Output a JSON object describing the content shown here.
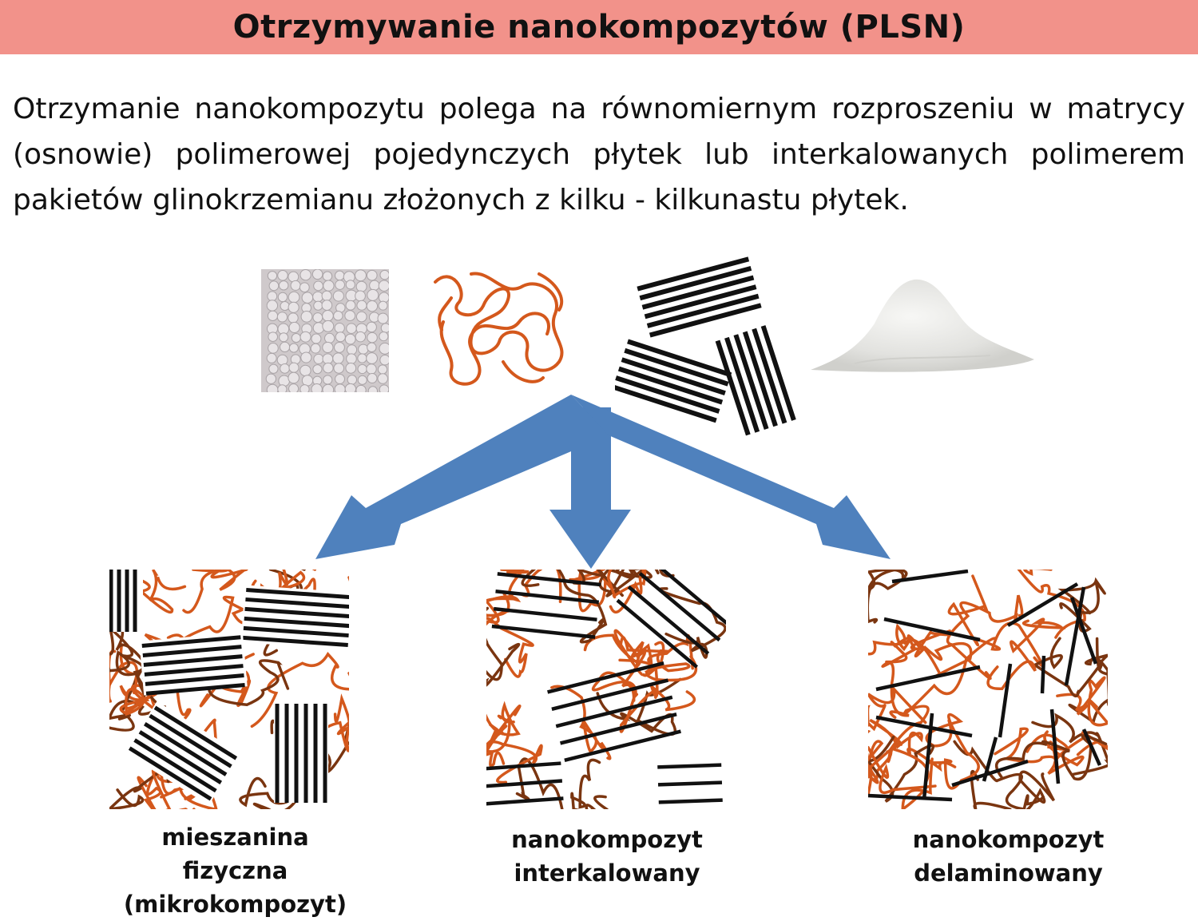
{
  "title": "Otrzymywanie nanokompozytów (PLSN)",
  "intro_text": "Otrzymanie nanokompozytu polega na równomiernym rozproszeniu w matrycy (osnowie) polimerowej pojedynczych płytek lub interkalowanych polimerem pakietów glinokrzemianu złożonych z kilku - kilkunastu płytek.",
  "captions": {
    "physical_mixture": {
      "line1": "mieszanina fizyczna",
      "line2": "(mikrokompozyt)"
    },
    "intercalated": {
      "line1": "nanokompozyt",
      "line2": "interkalowany"
    },
    "exfoliated": {
      "line1": "nanokompozyt",
      "line2": "delaminowany"
    }
  },
  "colors": {
    "title_bar": "#f2928a",
    "arrow": "#4f81bd",
    "polymer_chain": "#d4581c",
    "clay_plate": "#111111"
  },
  "icons": {
    "polymer_pellets": "pellets-photo",
    "polymer_chains": "chain-coil",
    "clay_stacks": "stacked-plates",
    "clay_powder": "powder-pile"
  }
}
